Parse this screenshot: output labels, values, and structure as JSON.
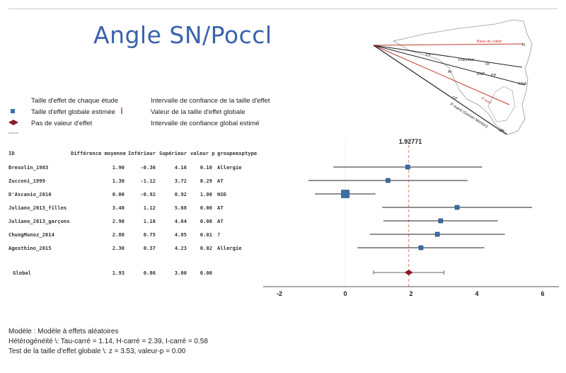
{
  "title": "Angle SN/Poccl",
  "legend": {
    "study_effect": "Taille d'effet de chaque étude",
    "global_effect": "Taille d'effet globale estimée",
    "no_effect_value": "Pas de valeur d'effet",
    "ci_effect": "Intervalle de confiance de la taille d'effet",
    "global_effect_value": "Valeur de la taille d'effet globale",
    "global_ci": "Intervalle de confiance global estimé"
  },
  "table": {
    "headers": [
      "ID",
      "Différence moyenne",
      "Inférieur",
      "Supérieur",
      "valeur p",
      "groupeexptype"
    ],
    "rows": [
      [
        "Bresolin_1983",
        "1.90",
        "-0.36",
        "4.16",
        "0.10",
        "Allergie"
      ],
      [
        "Zucconi_1999",
        "1.30",
        "-1.12",
        "3.72",
        "0.29",
        "AT"
      ],
      [
        "D'Ascanio_2010",
        "0.00",
        "-0.92",
        "0.92",
        "1.00",
        "NSD"
      ],
      [
        "Juliano_2013_filles",
        "3.40",
        "1.12",
        "5.68",
        "0.00",
        "AT"
      ],
      [
        "Juliano_2013_garçons",
        "2.90",
        "1.16",
        "4.64",
        "0.00",
        "AT"
      ],
      [
        "ChungMunoz_2014",
        "2.80",
        "0.75",
        "4.85",
        "0.01",
        "?"
      ],
      [
        "Agosthino_2015",
        "2.30",
        "0.37",
        "4.23",
        "0.02",
        "Allergie"
      ]
    ],
    "global_row": [
      "Global",
      "1.93",
      "0.86",
      "3.00",
      "0.00",
      ""
    ]
  },
  "chart_data": {
    "type": "forest",
    "summary_label": "1.92771",
    "x_ticks": [
      "-2",
      "0",
      "2",
      "4",
      "6"
    ],
    "xlim": [
      -2,
      6
    ],
    "studies": [
      {
        "id": "Bresolin_1983",
        "estimate": 1.9,
        "lower": -0.36,
        "upper": 4.16
      },
      {
        "id": "Zucconi_1999",
        "estimate": 1.3,
        "lower": -1.12,
        "upper": 3.72
      },
      {
        "id": "D'Ascanio_2010",
        "estimate": 0.0,
        "lower": -0.92,
        "upper": 0.92
      },
      {
        "id": "Juliano_2013_filles",
        "estimate": 3.4,
        "lower": 1.12,
        "upper": 5.68
      },
      {
        "id": "Juliano_2013_garçons",
        "estimate": 2.9,
        "lower": 1.16,
        "upper": 4.64
      },
      {
        "id": "ChungMunoz_2014",
        "estimate": 2.8,
        "lower": 0.75,
        "upper": 4.85
      },
      {
        "id": "Agosthino_2015",
        "estimate": 2.3,
        "lower": 0.37,
        "upper": 4.23
      }
    ],
    "global": {
      "estimate": 1.93,
      "lower": 0.86,
      "upper": 3.0
    },
    "colors": {
      "square": "#3b6ea8",
      "diamond": "#8b1a2b",
      "dashed": "#e07a6a"
    }
  },
  "diagram_labels": [
    "Base du crâne",
    "N",
    "Po",
    "Francfort",
    "Or",
    "Ar",
    "ENP",
    "PP",
    "ENA",
    "Go",
    "P occl",
    "P mand (Gonion Menton)",
    "Me"
  ],
  "footer": {
    "model": "Modèle : Modèle à effets aléatoires",
    "heterogeneity": "Hétérogénéité \\: Tau-carré = 1.14, H-carré = 2.39, I-carré = 0.58",
    "test": "Test de la taille d'effet globale \\: z = 3.53, valeur-p = 0.00"
  }
}
